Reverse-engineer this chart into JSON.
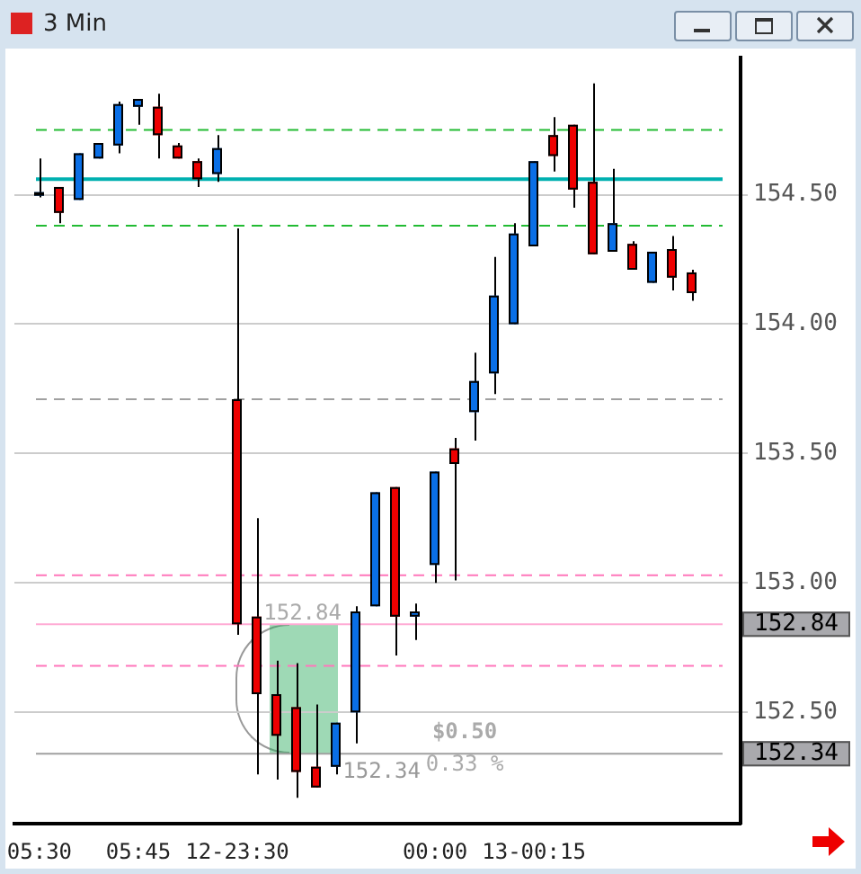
{
  "chart_data": {
    "type": "candlestick",
    "title": "3 Min",
    "categories": [
      "05:30",
      null,
      null,
      null,
      null,
      "05:45",
      null,
      null,
      null,
      null,
      "12-23:30",
      null,
      null,
      null,
      null,
      null,
      null,
      null,
      null,
      null,
      "00:00",
      null,
      null,
      null,
      null,
      "13-00:15",
      null,
      null,
      null,
      null,
      null,
      null,
      null,
      null
    ],
    "ohlc": [
      [
        154.5,
        154.64,
        154.49,
        154.51
      ],
      [
        154.53,
        154.53,
        154.39,
        154.43
      ],
      [
        154.48,
        154.66,
        154.48,
        154.66
      ],
      [
        154.64,
        154.7,
        154.64,
        154.7
      ],
      [
        154.69,
        154.86,
        154.66,
        154.85
      ],
      [
        154.84,
        154.87,
        154.77,
        154.87
      ],
      [
        154.84,
        154.89,
        154.64,
        154.73
      ],
      [
        154.69,
        154.7,
        154.64,
        154.64
      ],
      [
        154.63,
        154.64,
        154.53,
        154.56
      ],
      [
        154.58,
        154.73,
        154.55,
        154.68
      ],
      [
        153.71,
        154.37,
        152.8,
        152.84
      ],
      [
        152.87,
        153.25,
        152.26,
        152.57
      ],
      [
        152.57,
        152.7,
        152.24,
        152.41
      ],
      [
        152.52,
        152.69,
        152.17,
        152.27
      ],
      [
        152.29,
        152.53,
        152.21,
        152.21
      ],
      [
        152.29,
        152.46,
        152.26,
        152.46
      ],
      [
        152.5,
        152.91,
        152.38,
        152.89
      ],
      [
        152.91,
        153.35,
        152.91,
        153.35
      ],
      [
        153.37,
        153.37,
        152.72,
        152.87
      ],
      [
        152.87,
        152.92,
        152.78,
        152.89
      ],
      [
        153.07,
        153.43,
        153.0,
        153.43
      ],
      [
        153.52,
        153.56,
        153.01,
        153.46
      ],
      [
        153.66,
        153.89,
        153.55,
        153.78
      ],
      [
        153.81,
        154.26,
        153.73,
        154.11
      ],
      [
        154.0,
        154.39,
        154.0,
        154.35
      ],
      [
        154.3,
        154.63,
        154.3,
        154.63
      ],
      [
        154.73,
        154.8,
        154.59,
        154.65
      ],
      [
        154.77,
        154.77,
        154.45,
        154.52
      ],
      [
        154.55,
        154.93,
        154.27,
        154.27
      ],
      [
        154.28,
        154.6,
        154.28,
        154.39
      ],
      [
        154.31,
        154.32,
        154.21,
        154.21
      ],
      [
        154.16,
        154.28,
        154.16,
        154.28
      ],
      [
        154.29,
        154.34,
        154.13,
        154.18
      ],
      [
        154.2,
        154.21,
        154.09,
        154.12
      ]
    ],
    "colors": [
      "#0a6fe6",
      "#ee0000",
      "#0a6fe6",
      "#0a6fe6",
      "#0a6fe6",
      "#0a6fe6",
      "#ee0000",
      "#ee0000",
      "#ee0000",
      "#0a6fe6",
      "#ee0000",
      "#ee0000",
      "#ee0000",
      "#ee0000",
      "#ee0000",
      "#0a6fe6",
      "#0a6fe6",
      "#0a6fe6",
      "#ee0000",
      "#0a6fe6",
      "#0a6fe6",
      "#ee0000",
      "#0a6fe6",
      "#0a6fe6",
      "#0a6fe6",
      "#0a6fe6",
      "#ee0000",
      "#ee0000",
      "#ee0000",
      "#0a6fe6",
      "#ee0000",
      "#0a6fe6",
      "#ee0000",
      "#ee0000"
    ],
    "ylim": [
      152.07,
      155.03
    ],
    "yticks": [
      {
        "value": 152.5,
        "label": "152.50"
      },
      {
        "value": 153,
        "label": "153.00"
      },
      {
        "value": 153.5,
        "label": "153.50"
      },
      {
        "value": 154,
        "label": "154.00"
      },
      {
        "value": 154.5,
        "label": "154.50"
      }
    ],
    "grid": "y",
    "ref_lines": [
      {
        "axis": "y",
        "value": 154.75,
        "color": "#22bb33",
        "line_style": "dashed"
      },
      {
        "axis": "y",
        "value": 154.56,
        "color": "#00b0b0",
        "line_style": "solid"
      },
      {
        "axis": "y",
        "value": 154.38,
        "color": "#22bb33",
        "line_style": "dashed"
      },
      {
        "axis": "y",
        "value": 153.71,
        "color": "#a0a0a0",
        "line_style": "dashed"
      },
      {
        "axis": "y",
        "value": 153.03,
        "color": "#ff77bb",
        "line_style": "dashed"
      },
      {
        "axis": "y",
        "value": 152.84,
        "color": "#ffaad4",
        "line_style": "solid",
        "label": "152.84"
      },
      {
        "axis": "y",
        "value": 152.68,
        "color": "#ff77bb",
        "line_style": "dashed"
      },
      {
        "axis": "y",
        "value": 152.34,
        "color": "#a0a0a0",
        "line_style": "solid",
        "label": "152.34"
      }
    ],
    "annotations": [
      {
        "text": "152.84",
        "y": 152.84
      },
      {
        "text": "152.34",
        "y": 152.34
      },
      "$0.50",
      "0.33 %"
    ]
  }
}
